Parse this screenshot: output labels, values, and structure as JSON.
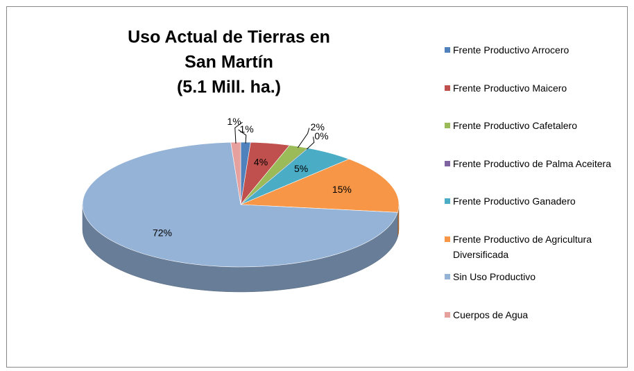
{
  "chart_data": {
    "type": "pie3d",
    "title": [
      "Uso Actual de Tierras en",
      "San Martín",
      "(5.1 Mill. ha.)"
    ],
    "categories": [
      "Frente Productivo Arrocero",
      "Frente Productivo Maicero",
      "Frente Productivo Cafetalero",
      "Frente Productivo de Palma Aceitera",
      "Frente Productivo Ganadero",
      "Frente Productivo de Agricultura Diversificada",
      "Sin Uso Productivo",
      "Cuerpos de Agua"
    ],
    "values": [
      1,
      4,
      2,
      0,
      5,
      15,
      72,
      1
    ],
    "value_labels": [
      "1%",
      "4%",
      "2%",
      "0%",
      "5%",
      "15%",
      "72%",
      "1%"
    ],
    "colors": [
      "#4f81bd",
      "#c0504d",
      "#9bbb59",
      "#8064a2",
      "#4bacc6",
      "#f79646",
      "#95b3d7",
      "#e6a19e"
    ],
    "legend": "right"
  }
}
